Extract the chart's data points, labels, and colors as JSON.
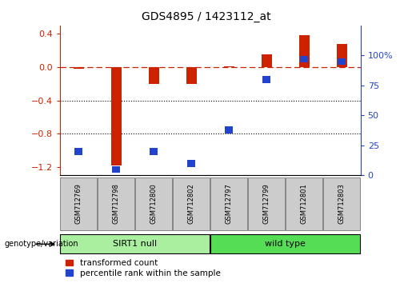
{
  "title": "GDS4895 / 1423112_at",
  "categories": [
    "GSM712769",
    "GSM712798",
    "GSM712800",
    "GSM712802",
    "GSM712797",
    "GSM712799",
    "GSM712801",
    "GSM712803"
  ],
  "red_values": [
    -0.02,
    -1.18,
    -0.2,
    -0.2,
    0.01,
    0.15,
    0.38,
    0.28
  ],
  "blue_values": [
    20,
    5,
    20,
    10,
    38,
    80,
    97,
    95
  ],
  "group_labels": [
    "SIRT1 null",
    "wild type"
  ],
  "group_splits": [
    4
  ],
  "group_colors": [
    "#AAEEA0",
    "#55DD55"
  ],
  "red_color": "#CC2200",
  "blue_color": "#2244CC",
  "left_ylim": [
    -1.3,
    0.5
  ],
  "left_yticks": [
    0.4,
    0.0,
    -0.4,
    -0.8,
    -1.2
  ],
  "right_ylim": [
    0,
    125
  ],
  "right_yticks": [
    0,
    25,
    50,
    75,
    100
  ],
  "right_yticklabels": [
    "0",
    "25",
    "50",
    "75",
    "100%"
  ],
  "legend_items": [
    "transformed count",
    "percentile rank within the sample"
  ],
  "genotype_label": "genotype/variation"
}
